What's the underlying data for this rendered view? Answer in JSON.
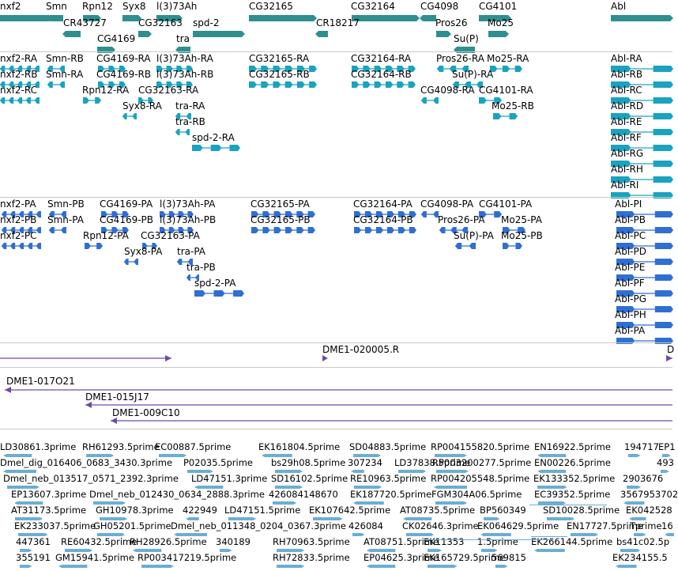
{
  "colors": {
    "gene": "#2f8f8f",
    "transcript": "#1aa3bf",
    "protein": "#2f6fd1",
    "clone": "#6f4aa8",
    "est": "#6aaed6",
    "rule": "#c8c8c8"
  },
  "tracks": {
    "gene_labels": [
      "nxf2",
      "Smn",
      "Rpn12",
      "Syx8",
      "l(3)73Ah",
      "CG32165",
      "CG32164",
      "CG4098",
      "CG4101",
      "Abl",
      "CR43727",
      "CG32163",
      "CR18217",
      "Pros26",
      "Mo25",
      "CG4169",
      "tra",
      "spd-2",
      "Su(P)"
    ],
    "transcript_labels": [
      "nxf2-RA",
      "Smn-RB",
      "CG4169-RA",
      "l(3)73Ah-RA",
      "CG32165-RA",
      "CG32164-RA",
      "Pros26-RA",
      "Mo25-RA",
      "Abl-RA",
      "nxf2-RB",
      "Smn-RA",
      "CG4169-RB",
      "l(3)73Ah-RB",
      "CG32165-RB",
      "CG32164-RB",
      "Su(P)-RA",
      "Abl-RB",
      "nxf2-RC",
      "Rpn12-RA",
      "CG32163-RA",
      "CG4098-RA",
      "CG4101-RA",
      "Abl-RC",
      "Syx8-RA",
      "tra-RA",
      "Mo25-RB",
      "Abl-RD",
      "tra-RB",
      "Abl-RE",
      "spd-2-RA",
      "Abl-RF",
      "Abl-RG",
      "Abl-RH",
      "Abl-RI"
    ],
    "protein_labels": [
      "nxf2-PA",
      "Smn-PB",
      "CG4169-PA",
      "l(3)73Ah-PA",
      "CG32165-PA",
      "CG32164-PA",
      "CG4098-PA",
      "CG4101-PA",
      "Abl-PI",
      "nxf2-PB",
      "Smn-PA",
      "CG4169-PB",
      "l(3)73Ah-PB",
      "CG32165-PB",
      "CG32164-PB",
      "Pros26-PA",
      "Mo25-PA",
      "Abl-PB",
      "nxf2-PC",
      "Rpn12-PA",
      "CG32163-PA",
      "Su(P)-PA",
      "Mo25-PB",
      "Abl-PC",
      "Syx8-PA",
      "tra-PA",
      "Abl-PD",
      "tra-PB",
      "Abl-PE",
      "spd-2-PA",
      "Abl-PF",
      "Abl-PG",
      "Abl-PH",
      "Abl-PA"
    ],
    "clone_labels": [
      "DME1-020005.R",
      "D",
      "DME1-017O21",
      "DME1-015J17",
      "DME1-009C10"
    ],
    "est_labels": [
      "LD30861.3prime",
      "RH61293.5prime",
      "EC00887.5prime",
      "EK161804.5prime",
      "SD04883.5prime",
      "RP004155820.5prime",
      "EN16922.5prime",
      "194717",
      "EP1",
      "Dmel_dig_016406_0683_3430.3prime",
      "P02035.5prime",
      "bs29h08.5prime",
      "307234",
      "LD37838.5prime",
      "RP003200277.5prime",
      "EN00226.5prime",
      "493",
      "Dmel_neb_013517_0571_2392.3prime",
      "LD47151.3prime",
      "SD16102.5prime",
      "RE10963.5prime",
      "RP004205548.5prime",
      "EK133352.5prime",
      "2903676",
      "EP13607.3prime",
      "Dmel_neb_012430_0634_2888.3prime",
      "426084148670",
      "EK187720.5prime",
      "FGM304A06.5prime",
      "EC39352.5prime",
      "3567953702",
      "AT31173.5prime",
      "GH10978.3prime",
      "422949",
      "LD47151.5prime",
      "EK107642.5prime",
      "AT08735.5prime",
      "BP560349",
      "SD10028.5prime",
      "EK042528",
      "EK233037.5prime",
      "GH05201.5prime",
      "Dmel_neb_011348_0204_0367.3prime",
      "426084",
      "CK02646.3prime",
      "EK064629.5prime",
      "EN17727.5prime",
      "Tprime",
      "16",
      "447361",
      "RE60432.5prime",
      "RH28926.5prime",
      "340189",
      "RH70963.5prime",
      "AT08751.5prime",
      "EK11353",
      "1.5prime",
      "EK266144.5prime",
      "bs41c02.5p",
      "355191",
      "GM15941.5prime",
      "RP003417219.5prime",
      "RH72833.5prime",
      "EP04625.3prime",
      "EK165729.5prime",
      "569815",
      "EK234155.5"
    ]
  }
}
